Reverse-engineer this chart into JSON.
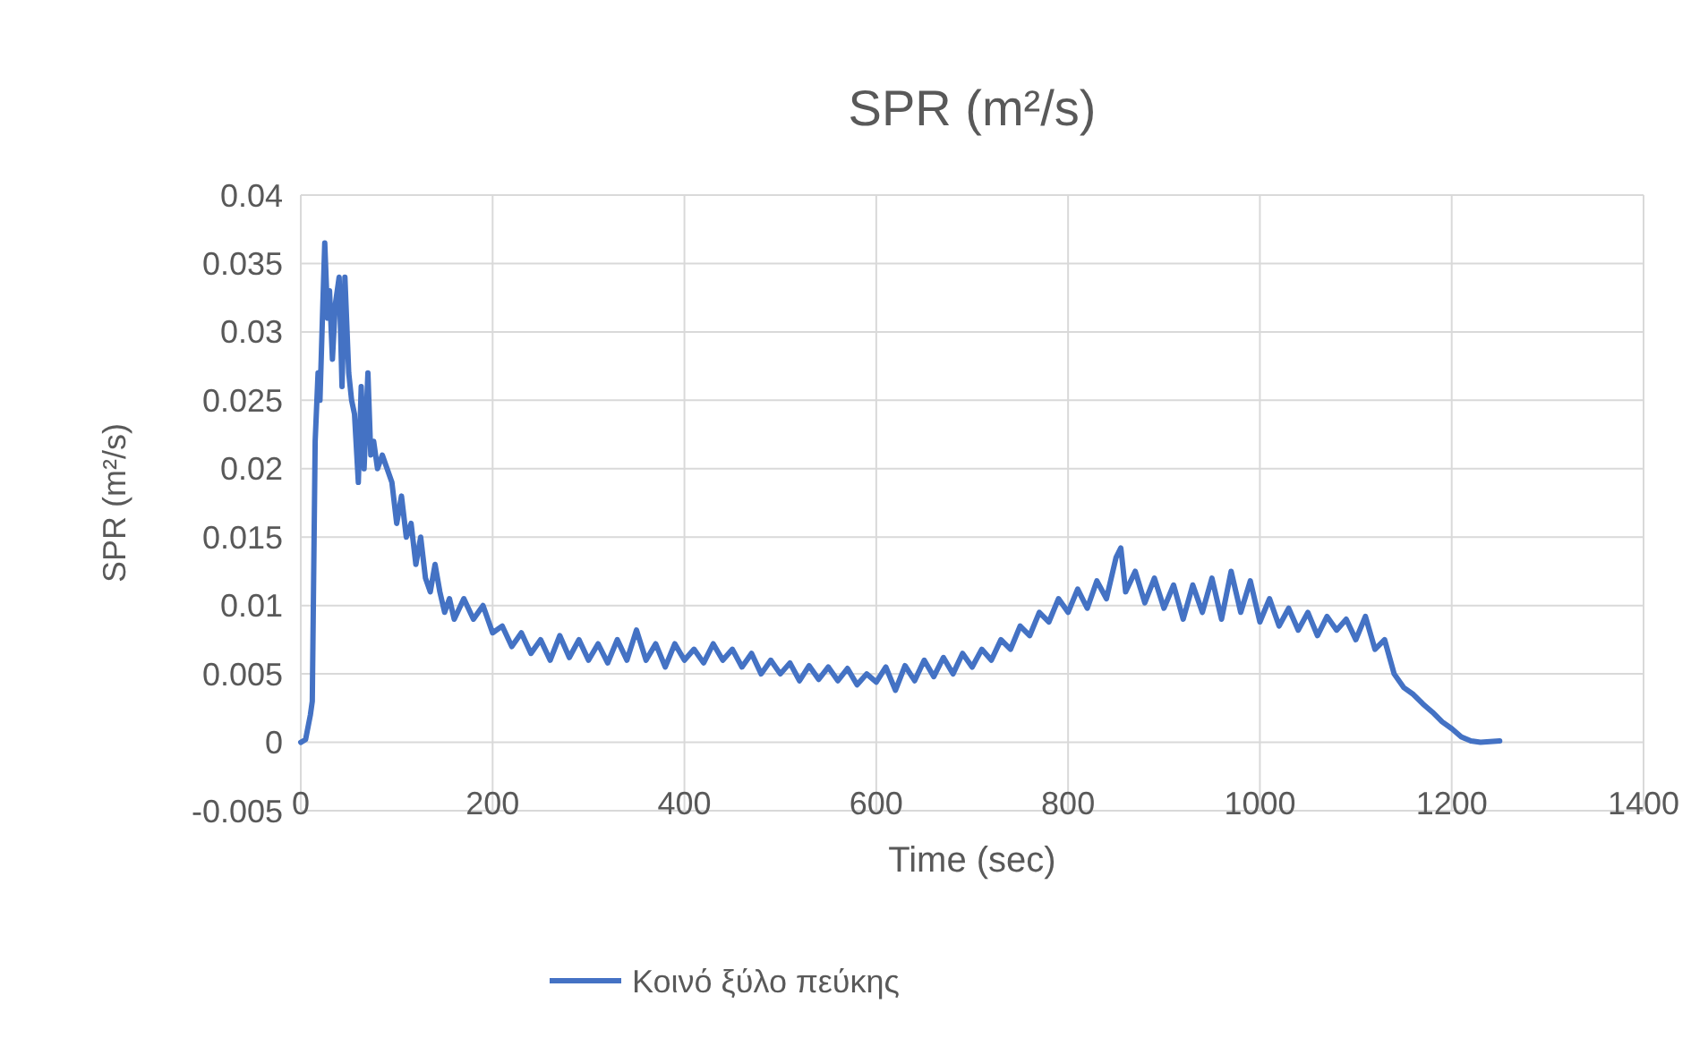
{
  "chart_data": {
    "type": "line",
    "title": "SPR (m²/s)",
    "xlabel": "Time (sec)",
    "ylabel": "SPR (m²/s)",
    "xlim": [
      0,
      1400
    ],
    "xticks": [
      0,
      200,
      400,
      600,
      800,
      1000,
      1200,
      1400
    ],
    "ylim": [
      -0.005,
      0.04
    ],
    "yticks": [
      -0.005,
      0,
      0.005,
      0.01,
      0.015,
      0.02,
      0.025,
      0.03,
      0.035,
      0.04
    ],
    "grid": true,
    "legend": "bottom",
    "marker": "none",
    "line_style": "solid",
    "series": [
      {
        "name": "Κοινό ξύλο πεύκης",
        "color": "#4472c4",
        "x": [
          0,
          5,
          10,
          12,
          15,
          18,
          20,
          23,
          25,
          28,
          30,
          33,
          36,
          40,
          43,
          46,
          50,
          53,
          56,
          60,
          63,
          66,
          70,
          73,
          76,
          80,
          85,
          90,
          95,
          100,
          105,
          110,
          115,
          120,
          125,
          130,
          135,
          140,
          145,
          150,
          155,
          160,
          170,
          180,
          190,
          200,
          210,
          220,
          230,
          240,
          250,
          260,
          270,
          280,
          290,
          300,
          310,
          320,
          330,
          340,
          350,
          360,
          370,
          380,
          390,
          400,
          410,
          420,
          430,
          440,
          450,
          460,
          470,
          480,
          490,
          500,
          510,
          520,
          530,
          540,
          550,
          560,
          570,
          580,
          590,
          600,
          610,
          620,
          630,
          640,
          650,
          660,
          670,
          680,
          690,
          700,
          710,
          720,
          730,
          740,
          750,
          760,
          770,
          780,
          790,
          800,
          810,
          820,
          830,
          840,
          850,
          855,
          860,
          870,
          880,
          890,
          900,
          910,
          920,
          930,
          940,
          950,
          960,
          970,
          980,
          990,
          1000,
          1010,
          1020,
          1030,
          1040,
          1050,
          1060,
          1070,
          1080,
          1090,
          1100,
          1110,
          1120,
          1130,
          1140,
          1150,
          1160,
          1170,
          1180,
          1190,
          1200,
          1210,
          1220,
          1230,
          1250
        ],
        "values": [
          0,
          0.0002,
          0.002,
          0.003,
          0.022,
          0.027,
          0.025,
          0.032,
          0.0365,
          0.031,
          0.033,
          0.028,
          0.032,
          0.034,
          0.026,
          0.034,
          0.027,
          0.025,
          0.024,
          0.019,
          0.026,
          0.02,
          0.027,
          0.021,
          0.022,
          0.02,
          0.021,
          0.02,
          0.019,
          0.016,
          0.018,
          0.015,
          0.016,
          0.013,
          0.015,
          0.012,
          0.011,
          0.013,
          0.011,
          0.0095,
          0.0105,
          0.009,
          0.0105,
          0.009,
          0.01,
          0.008,
          0.0085,
          0.007,
          0.008,
          0.0065,
          0.0075,
          0.006,
          0.0078,
          0.0062,
          0.0075,
          0.006,
          0.0072,
          0.0058,
          0.0075,
          0.006,
          0.0082,
          0.006,
          0.0072,
          0.0055,
          0.0072,
          0.006,
          0.0068,
          0.0058,
          0.0072,
          0.006,
          0.0068,
          0.0055,
          0.0065,
          0.005,
          0.006,
          0.005,
          0.0058,
          0.0045,
          0.0056,
          0.0046,
          0.0055,
          0.0045,
          0.0054,
          0.0042,
          0.005,
          0.0044,
          0.0055,
          0.0038,
          0.0056,
          0.0045,
          0.006,
          0.0048,
          0.0062,
          0.005,
          0.0065,
          0.0055,
          0.0068,
          0.006,
          0.0075,
          0.0068,
          0.0085,
          0.0078,
          0.0095,
          0.0088,
          0.0105,
          0.0095,
          0.0112,
          0.0098,
          0.0118,
          0.0105,
          0.0135,
          0.0142,
          0.011,
          0.0125,
          0.0102,
          0.012,
          0.0098,
          0.0115,
          0.009,
          0.0115,
          0.0095,
          0.012,
          0.009,
          0.0125,
          0.0095,
          0.0118,
          0.0088,
          0.0105,
          0.0085,
          0.0098,
          0.0082,
          0.0095,
          0.0078,
          0.0092,
          0.0082,
          0.009,
          0.0075,
          0.0092,
          0.0068,
          0.0075,
          0.005,
          0.004,
          0.0035,
          0.0028,
          0.0022,
          0.0015,
          0.001,
          0.0004,
          0.0001,
          0,
          0.0001
        ]
      }
    ]
  }
}
